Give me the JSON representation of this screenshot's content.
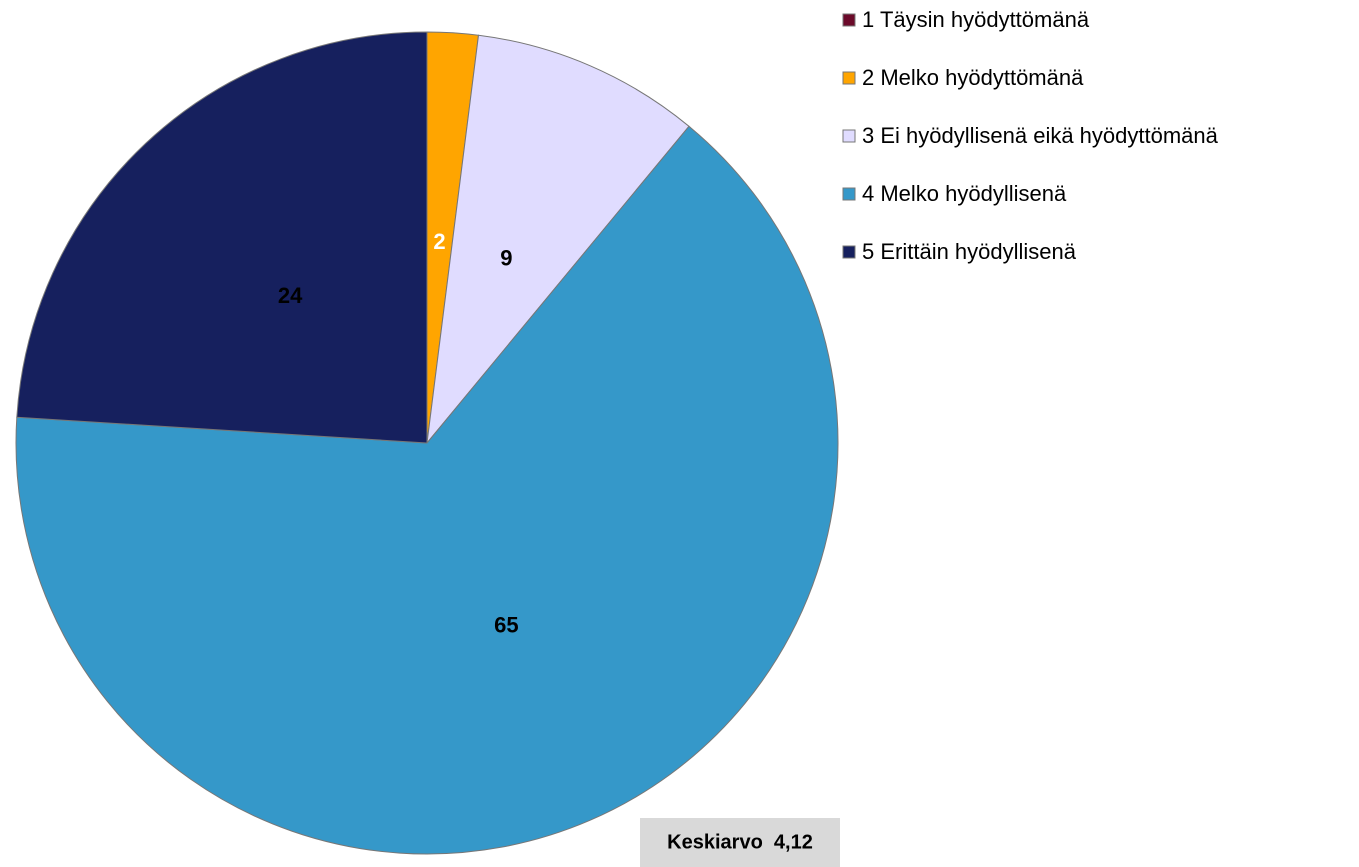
{
  "chart_data": {
    "type": "pie",
    "categories": [
      "1 Täysin hyödyttömänä",
      "2 Melko hyödyttömänä",
      "3 Ei hyödyllisenä eikä hyödyttömänä",
      "4 Melko hyödyllisenä",
      "5 Erittäin hyödyllisenä"
    ],
    "values": [
      0,
      2,
      9,
      65,
      24
    ],
    "value_labels": [
      null,
      "2",
      "9",
      "65",
      "24"
    ],
    "colors": [
      "#6b0a2a",
      "#ffa500",
      "#e0dcff",
      "#3598c9",
      "#16205e"
    ],
    "label_colors": [
      "#000000",
      "#ffffff",
      "#000000",
      "#000000",
      "#000000"
    ],
    "annotation": "Keskiarvo  4,12",
    "legend": "right"
  }
}
